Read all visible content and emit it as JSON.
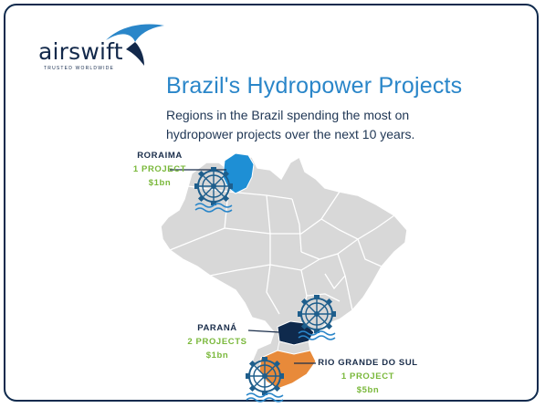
{
  "brand": {
    "name": "airswift",
    "tagline": "TRUSTED WORLDWIDE"
  },
  "header": {
    "title": "Brazil's Hydropower Projects",
    "subtitle_line1": "Regions in the Brazil spending the most on",
    "subtitle_line2": "hydropower projects over the next 10 years."
  },
  "regions": [
    {
      "name": "RORAIMA",
      "projects": "1 PROJECT",
      "amount": "$1bn",
      "color": "#1e8fd5"
    },
    {
      "name": "PARANÁ",
      "projects": "2 PROJECTS",
      "amount": "$1bn",
      "color": "#0f2a4d"
    },
    {
      "name": "RIO GRANDE DO SUL",
      "projects": "1 PROJECT",
      "amount": "$5bn",
      "color": "#e88a3a"
    }
  ],
  "colors": {
    "frame": "#0f2a4d",
    "title": "#2a86c9",
    "highlight_text": "#7ab83b",
    "map_fill": "#d8d8d8",
    "map_border": "#ffffff",
    "icon": "#1e5e8c"
  },
  "icons": [
    "water-wheel-icon",
    "swift-bird-icon"
  ]
}
